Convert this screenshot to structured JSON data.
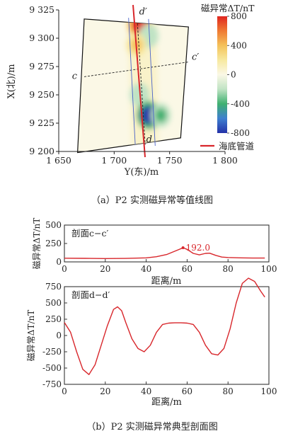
{
  "chart_data": [
    {
      "type": "heatmap",
      "caption": "（a）P2 实测磁异常等值线图",
      "xlabel": "Y(东)/m",
      "ylabel": "X(北)/m",
      "xlim": [
        1650,
        1800
      ],
      "ylim": [
        9200,
        9325
      ],
      "x_ticks": [
        "1 650",
        "1 700",
        "1 750",
        "1 800"
      ],
      "x_tick_values": [
        1650,
        1700,
        1750,
        1800
      ],
      "y_ticks": [
        "9 200",
        "9 225",
        "9 250",
        "9 275",
        "9 300",
        "9 325"
      ],
      "y_tick_values": [
        9200,
        9225,
        9250,
        9275,
        9300,
        9325
      ],
      "colorbar": {
        "title": "磁异常ΔT/nT",
        "ticks": [
          "800",
          "400",
          "0",
          "-400",
          "-800"
        ],
        "tick_values": [
          800,
          400,
          0,
          -400,
          -800
        ],
        "range": [
          -800,
          800
        ],
        "colors": [
          "#2431a8",
          "#3f7fcf",
          "#3fb070",
          "#bfe3c4",
          "#fbf8e6",
          "#f7e9a0",
          "#f4c25a",
          "#ef7a33",
          "#e0261f"
        ]
      },
      "profile_labels": {
        "c": "c",
        "c_prime": "c′",
        "d": "d",
        "d_prime": "d′"
      },
      "legend": [
        {
          "name": "海底管道",
          "color": "#d8262b"
        }
      ],
      "anomalies": [
        {
          "x": 1723,
          "y": 9312,
          "value": 800
        },
        {
          "x": 1731,
          "y": 9302,
          "value": -300
        },
        {
          "x": 1720,
          "y": 9294,
          "value": 300
        },
        {
          "x": 1723,
          "y": 9250,
          "value": -300
        },
        {
          "x": 1731,
          "y": 9232,
          "value": -800
        },
        {
          "x": 1742,
          "y": 9232,
          "value": -400
        }
      ]
    },
    {
      "type": "line",
      "caption": "（b）P2 实测磁异常典型剖面图",
      "panels": [
        {
          "section_label": "剖面c−c′",
          "ylabel": "磁异常ΔT/nT",
          "xlabel": "",
          "xlim": [
            0,
            100
          ],
          "ylim": [
            0,
            500
          ],
          "y_ticks": [
            0,
            250,
            500
          ],
          "x_ticks": [
            0,
            20,
            40,
            60,
            80,
            100
          ],
          "annotation": {
            "x": 58,
            "y": 192,
            "text": "192.0"
          },
          "series": [
            {
              "color": "#d8262b",
              "x": [
                0,
                10,
                20,
                30,
                40,
                45,
                50,
                54,
                57,
                58,
                60,
                63,
                66,
                69,
                71,
                74,
                77,
                80,
                86,
                92,
                98
              ],
              "y": [
                50,
                48,
                45,
                47,
                55,
                70,
                100,
                145,
                180,
                192,
                170,
                115,
                95,
                115,
                118,
                88,
                65,
                60,
                55,
                52,
                52
              ]
            }
          ]
        },
        {
          "section_label": "剖面d−d′",
          "ylabel": "磁异常ΔT/nT",
          "xlabel": "距离/m",
          "xlim": [
            0,
            100
          ],
          "ylim": [
            -750,
            750
          ],
          "y_ticks": [
            -750,
            -500,
            -250,
            0,
            250,
            500,
            750
          ],
          "x_ticks": [
            0,
            20,
            40,
            60,
            80,
            100
          ],
          "series": [
            {
              "color": "#d8262b",
              "x": [
                0,
                3,
                6,
                9,
                12,
                15,
                18,
                21,
                24,
                26,
                28,
                30,
                33,
                36,
                39,
                42,
                45,
                48,
                51,
                54,
                57,
                60,
                63,
                66,
                69,
                72,
                75,
                78,
                81,
                84,
                87,
                90,
                93,
                96,
                98
              ],
              "y": [
                200,
                50,
                -250,
                -520,
                -600,
                -450,
                -150,
                150,
                400,
                440,
                380,
                200,
                -50,
                -200,
                -250,
                -150,
                50,
                170,
                190,
                195,
                195,
                190,
                170,
                50,
                -150,
                -280,
                -300,
                -200,
                100,
                500,
                800,
                880,
                830,
                680,
                590
              ]
            }
          ]
        }
      ]
    }
  ]
}
